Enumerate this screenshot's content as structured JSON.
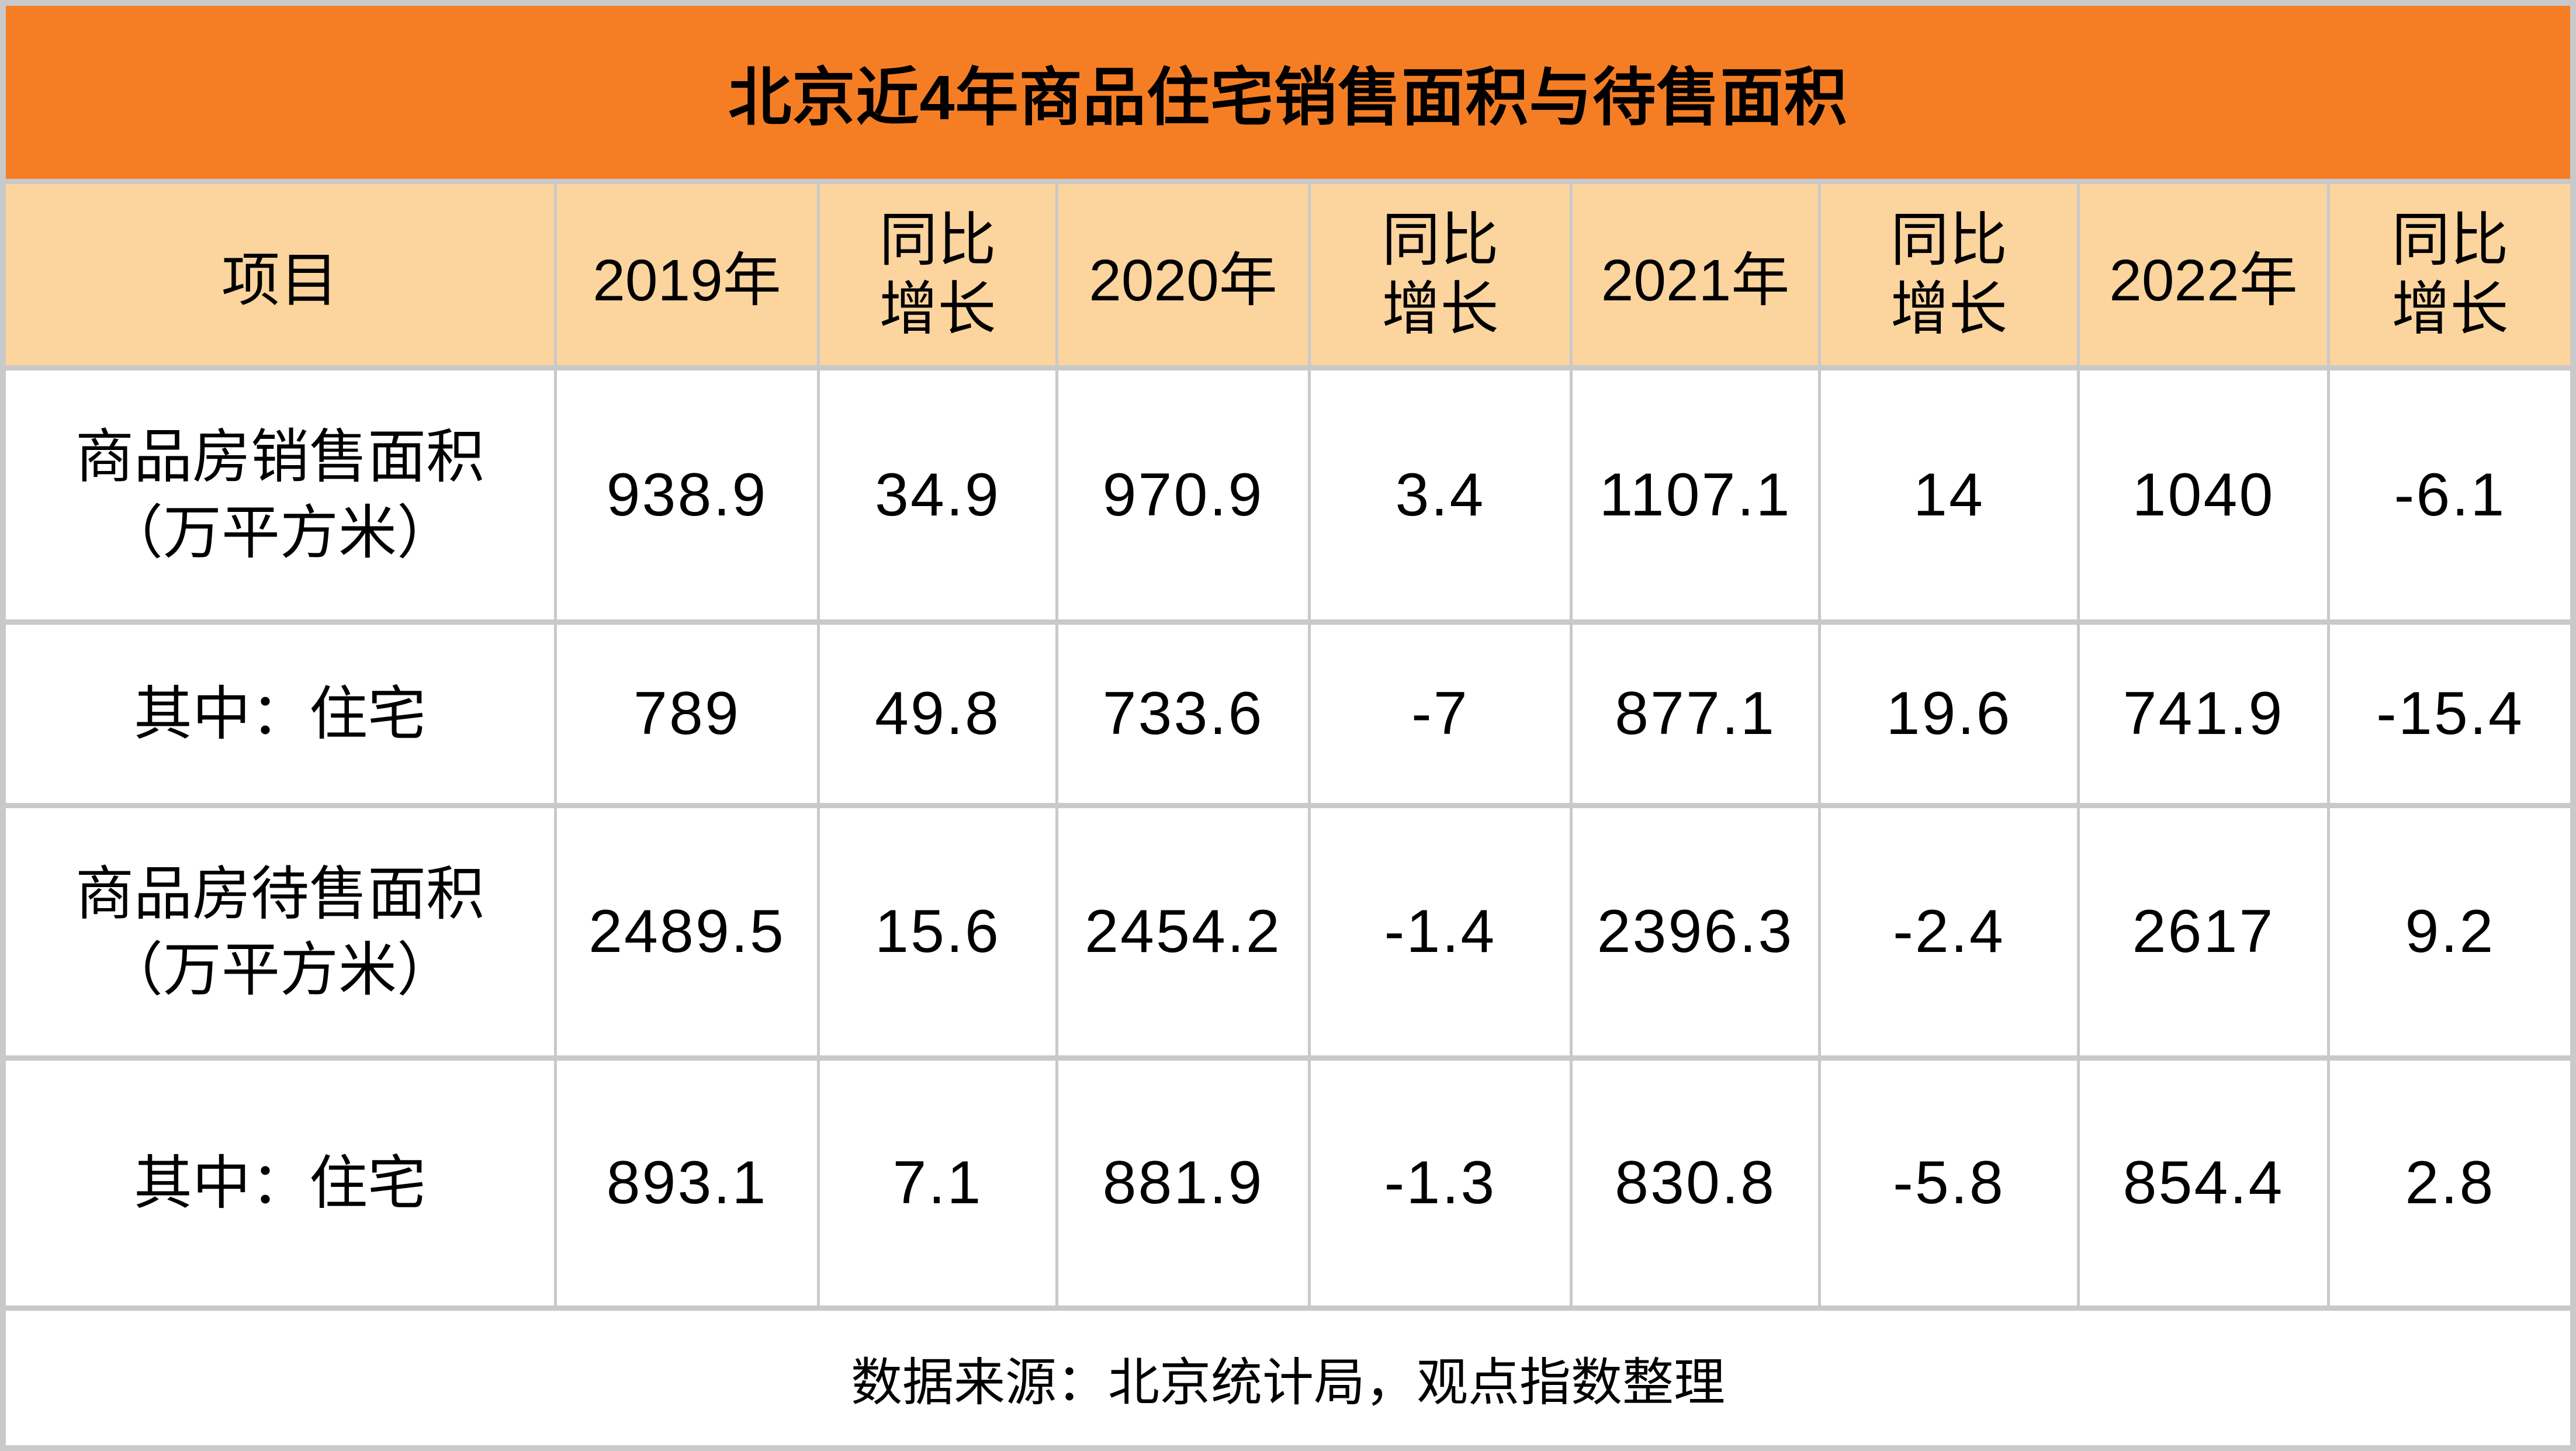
{
  "title": "北京近4年商品住宅销售面积与待售面积",
  "colors": {
    "banner_bg": "#F57E25",
    "header_bg": "#FCD49E",
    "border_color": "#C9C9C9",
    "cell_bg": "#FFFFFF",
    "text_color": "#000000"
  },
  "table": {
    "columns": [
      "项目",
      "2019年",
      "同比增长",
      "2020年",
      "同比增长",
      "2021年",
      "同比增长",
      "2022年",
      "同比增长"
    ],
    "rows": [
      {
        "label_line1": "商品房销售面积",
        "label_line2": "（万平方米）",
        "values": [
          "938.9",
          "34.9",
          "970.9",
          "3.4",
          "1107.1",
          "14",
          "1040",
          "-6.1"
        ]
      },
      {
        "label": "其中：住宅",
        "values": [
          "789",
          "49.8",
          "733.6",
          "-7",
          "877.1",
          "19.6",
          "741.9",
          "-15.4"
        ]
      },
      {
        "label_line1": "商品房待售面积",
        "label_line2": "（万平方米）",
        "values": [
          "2489.5",
          "15.6",
          "2454.2",
          "-1.4",
          "2396.3",
          "-2.4",
          "2617",
          "9.2"
        ]
      },
      {
        "label": "其中：住宅",
        "values": [
          "893.1",
          "7.1",
          "881.9",
          "-1.3",
          "830.8",
          "-5.8",
          "854.4",
          "2.8"
        ]
      }
    ],
    "source_note": "数据来源：北京统计局，观点指数整理"
  },
  "chart_data": {
    "type": "table",
    "title": "北京近4年商品住宅销售面积与待售面积",
    "columns": [
      "项目",
      "2019年",
      "同比增长",
      "2020年",
      "同比增长",
      "2021年",
      "同比增长",
      "2022年",
      "同比增长"
    ],
    "rows": [
      [
        "商品房销售面积（万平方米）",
        938.9,
        34.9,
        970.9,
        3.4,
        1107.1,
        14,
        1040,
        -6.1
      ],
      [
        "其中：住宅",
        789,
        49.8,
        733.6,
        -7,
        877.1,
        19.6,
        741.9,
        -15.4
      ],
      [
        "商品房待售面积（万平方米）",
        2489.5,
        15.6,
        2454.2,
        -1.4,
        2396.3,
        -2.4,
        2617,
        9.2
      ],
      [
        "其中：住宅",
        893.1,
        7.1,
        881.9,
        -1.3,
        830.8,
        -5.8,
        854.4,
        2.8
      ]
    ],
    "units": "万平方米 / %",
    "source": "数据来源：北京统计局，观点指数整理"
  }
}
